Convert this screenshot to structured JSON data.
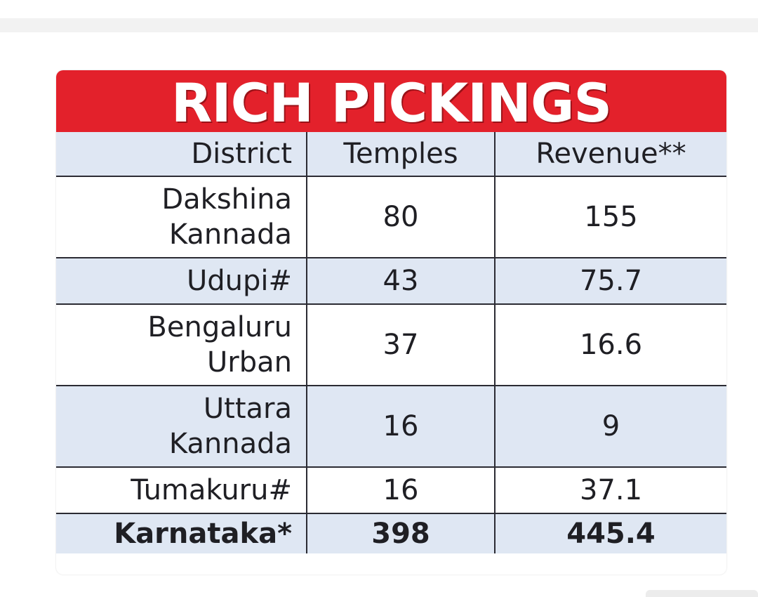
{
  "chart_data": {
    "type": "table",
    "title": "RICH PICKINGS",
    "columns": [
      "District",
      "Temples",
      "Revenue**"
    ],
    "rows": [
      {
        "district": "Dakshina Kannada",
        "temples": 80,
        "revenue": 155
      },
      {
        "district": "Udupi#",
        "temples": 43,
        "revenue": 75.7
      },
      {
        "district": "Bengaluru Urban",
        "temples": 37,
        "revenue": 16.6
      },
      {
        "district": "Uttara Kannada",
        "temples": 16,
        "revenue": 9
      },
      {
        "district": "Tumakuru#",
        "temples": 16,
        "revenue": 37.1
      }
    ],
    "total": {
      "district": "Karnataka*",
      "temples": 398,
      "revenue": 445.4
    }
  },
  "colors": {
    "title_bar": "#e3212b",
    "row_tint": "#dfe7f3",
    "grid_lines": "#2b2b33"
  },
  "display": {
    "title": "RICH PICKINGS",
    "header": {
      "district": "District",
      "temples": "Temples",
      "revenue": "Revenue**"
    },
    "rows": [
      {
        "district_line1": "Dakshina",
        "district_line2": "Kannada",
        "temples": "80",
        "revenue": "155"
      },
      {
        "district_line1": "Udupi#",
        "temples": "43",
        "revenue": "75.7"
      },
      {
        "district_line1": "Bengaluru",
        "district_line2": "Urban",
        "temples": "37",
        "revenue": "16.6"
      },
      {
        "district_line1": "Uttara",
        "district_line2": "Kannada",
        "temples": "16",
        "revenue": "9"
      },
      {
        "district_line1": "Tumakuru#",
        "temples": "16",
        "revenue": "37.1"
      }
    ],
    "total": {
      "district": "Karnataka*",
      "temples": "398",
      "revenue": "445.4"
    }
  }
}
